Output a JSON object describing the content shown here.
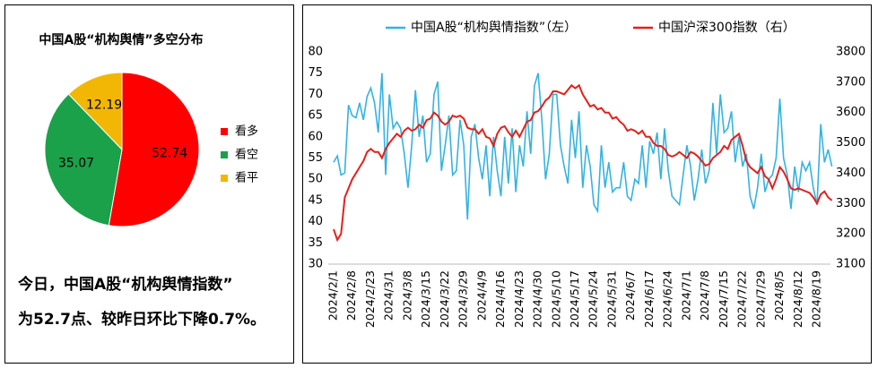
{
  "chart_data": [
    {
      "type": "pie",
      "title": "中国A股“机构舆情”多空分布",
      "categories": [
        "看多",
        "看空",
        "看平"
      ],
      "values": [
        52.74,
        35.07,
        12.19
      ],
      "colors": [
        "#ff0000",
        "#1aa14a",
        "#f2b705"
      ]
    },
    {
      "type": "line",
      "categories": [
        "2024/2/1",
        null,
        null,
        null,
        null,
        "2024/2/8",
        null,
        null,
        null,
        null,
        "2024/2/23",
        null,
        null,
        null,
        null,
        "2024/3/1",
        null,
        null,
        null,
        null,
        "2024/3/8",
        null,
        null,
        null,
        null,
        "2024/3/15",
        null,
        null,
        null,
        null,
        "2024/3/22",
        null,
        null,
        null,
        null,
        "2024/3/29",
        null,
        null,
        null,
        null,
        "2024/4/9",
        null,
        null,
        null,
        null,
        "2024/4/16",
        null,
        null,
        null,
        null,
        "2024/4/23",
        null,
        null,
        null,
        null,
        "2024/4/30",
        null,
        null,
        null,
        null,
        "2024/5/10",
        null,
        null,
        null,
        null,
        "2024/5/17",
        null,
        null,
        null,
        null,
        "2024/5/24",
        null,
        null,
        null,
        null,
        "2024/5/31",
        null,
        null,
        null,
        null,
        "2024/6/7",
        null,
        null,
        null,
        null,
        "2024/6/17",
        null,
        null,
        null,
        null,
        "2024/6/24",
        null,
        null,
        null,
        null,
        "2024/7/1",
        null,
        null,
        null,
        null,
        "2024/7/8",
        null,
        null,
        null,
        null,
        "2024/7/15",
        null,
        null,
        null,
        null,
        "2024/7/22",
        null,
        null,
        null,
        null,
        "2024/7/29",
        null,
        null,
        null,
        null,
        "2024/8/5",
        null,
        null,
        null,
        null,
        "2024/8/12",
        null,
        null,
        null,
        null,
        "2024/8/19",
        null,
        null,
        null,
        null
      ],
      "series": [
        {
          "name": "中国A股“机构舆情指数”（左）",
          "color": "#35b3e0",
          "axis": "y",
          "values": [
            54,
            55.5,
            51,
            51.5,
            67.5,
            65,
            64.5,
            68,
            64,
            69.5,
            71.5,
            68,
            61,
            75,
            51,
            70,
            62,
            63.5,
            62,
            56,
            48,
            58,
            71,
            60,
            65,
            54,
            56,
            70,
            73,
            52,
            58,
            65,
            51,
            52,
            64,
            58,
            40.5,
            60,
            63,
            55,
            50,
            58,
            46,
            60,
            52,
            46,
            60,
            49,
            62,
            47,
            58,
            53,
            66,
            56,
            72,
            75,
            64,
            50,
            56,
            70,
            70,
            58,
            53,
            49,
            64,
            55,
            66,
            48,
            58,
            53,
            44,
            42.5,
            58,
            48,
            54,
            47,
            48,
            48,
            54,
            46,
            45,
            50,
            49,
            58,
            48,
            59,
            56,
            61,
            50,
            62,
            52,
            46,
            45,
            44,
            51,
            58,
            53,
            45,
            50,
            57,
            49,
            52,
            68,
            56,
            70,
            61,
            62,
            66,
            54,
            60,
            53,
            56,
            46,
            43,
            48,
            56,
            47,
            50,
            51,
            55,
            69,
            55,
            51,
            43,
            53,
            47,
            54,
            52,
            54,
            48,
            44,
            63,
            54,
            57,
            53
          ]
        },
        {
          "name": "中国沪深300指数（右）",
          "color": "#e3211c",
          "axis": "y2",
          "values": [
            3215,
            3180,
            3200,
            3320,
            3350,
            3380,
            3400,
            3420,
            3440,
            3470,
            3480,
            3470,
            3470,
            3450,
            3480,
            3500,
            3515,
            3530,
            3520,
            3540,
            3550,
            3540,
            3545,
            3560,
            3550,
            3575,
            3580,
            3600,
            3590,
            3570,
            3560,
            3570,
            3590,
            3585,
            3590,
            3580,
            3550,
            3545,
            3545,
            3530,
            3545,
            3520,
            3515,
            3490,
            3530,
            3550,
            3555,
            3535,
            3520,
            3540,
            3520,
            3545,
            3570,
            3575,
            3600,
            3605,
            3620,
            3640,
            3650,
            3670,
            3670,
            3665,
            3660,
            3675,
            3690,
            3680,
            3690,
            3660,
            3640,
            3620,
            3625,
            3610,
            3615,
            3600,
            3600,
            3580,
            3585,
            3570,
            3560,
            3540,
            3545,
            3540,
            3530,
            3540,
            3520,
            3520,
            3500,
            3490,
            3490,
            3480,
            3460,
            3455,
            3460,
            3470,
            3460,
            3450,
            3470,
            3465,
            3455,
            3440,
            3425,
            3430,
            3450,
            3460,
            3470,
            3490,
            3480,
            3510,
            3520,
            3530,
            3490,
            3440,
            3420,
            3410,
            3400,
            3420,
            3390,
            3380,
            3350,
            3380,
            3420,
            3405,
            3380,
            3350,
            3345,
            3350,
            3345,
            3340,
            3335,
            3320,
            3300,
            3330,
            3340,
            3320,
            3310
          ]
        }
      ],
      "ylim": [
        30,
        80
      ],
      "yticks": [
        30,
        35,
        40,
        45,
        50,
        55,
        60,
        65,
        70,
        75,
        80
      ],
      "y2lim": [
        3100,
        3800
      ],
      "y2ticks": [
        3100,
        3200,
        3300,
        3400,
        3500,
        3600,
        3700,
        3800
      ],
      "legend": "top"
    }
  ],
  "summary": [
    "今日，中国A股“机构舆情指数”",
    "为52.7点、较昨日环比下降0.7%。"
  ]
}
